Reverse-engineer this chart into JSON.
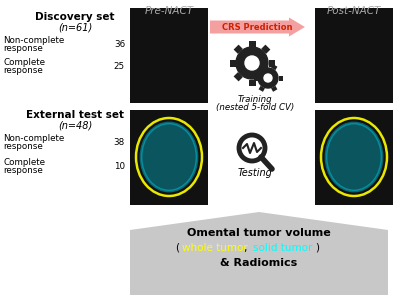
{
  "bg_color": "#ffffff",
  "title_pre_nact": "Pre-NACT",
  "title_post_nact": "Post-NACT",
  "arrow_label": "CRS Prediction",
  "discovery_set_title": "Discovery set",
  "discovery_set_n": "(n=61)",
  "discovery_non_complete_1": "Non-complete",
  "discovery_non_complete_2": "response",
  "discovery_non_complete_n": "36",
  "discovery_complete_1": "Complete",
  "discovery_complete_2": "response",
  "discovery_complete_n": "25",
  "external_set_title": "External test set",
  "external_set_n": "(n=48)",
  "external_non_complete_1": "Non-complete",
  "external_non_complete_2": "response",
  "external_non_complete_n": "38",
  "external_complete_1": "Complete",
  "external_complete_2": "response",
  "external_complete_n": "10",
  "training_label_1": "Training",
  "training_label_2": "(nested 5-fold CV)",
  "testing_label": "Testing",
  "bottom_box_title": "Omental tumor volume",
  "bottom_box_line2_prefix": "(",
  "bottom_box_line2_yellow": "whole tumor",
  "bottom_box_line2_comma": ", ",
  "bottom_box_line2_cyan": "solid tumor",
  "bottom_box_line2_suffix": ")",
  "bottom_box_line3": "& Radiomics",
  "arrow_color": "#f5a0a0",
  "arrow_text_color": "#cc2200",
  "pre_nact_color": "#aaaaaa",
  "post_nact_color": "#aaaaaa",
  "box_bg_color": "#c8c8c8",
  "yellow_color": "#ffff00",
  "cyan_color": "#00ffff",
  "gear_color": "#222222",
  "black": "#000000",
  "ct_color": "#111111"
}
